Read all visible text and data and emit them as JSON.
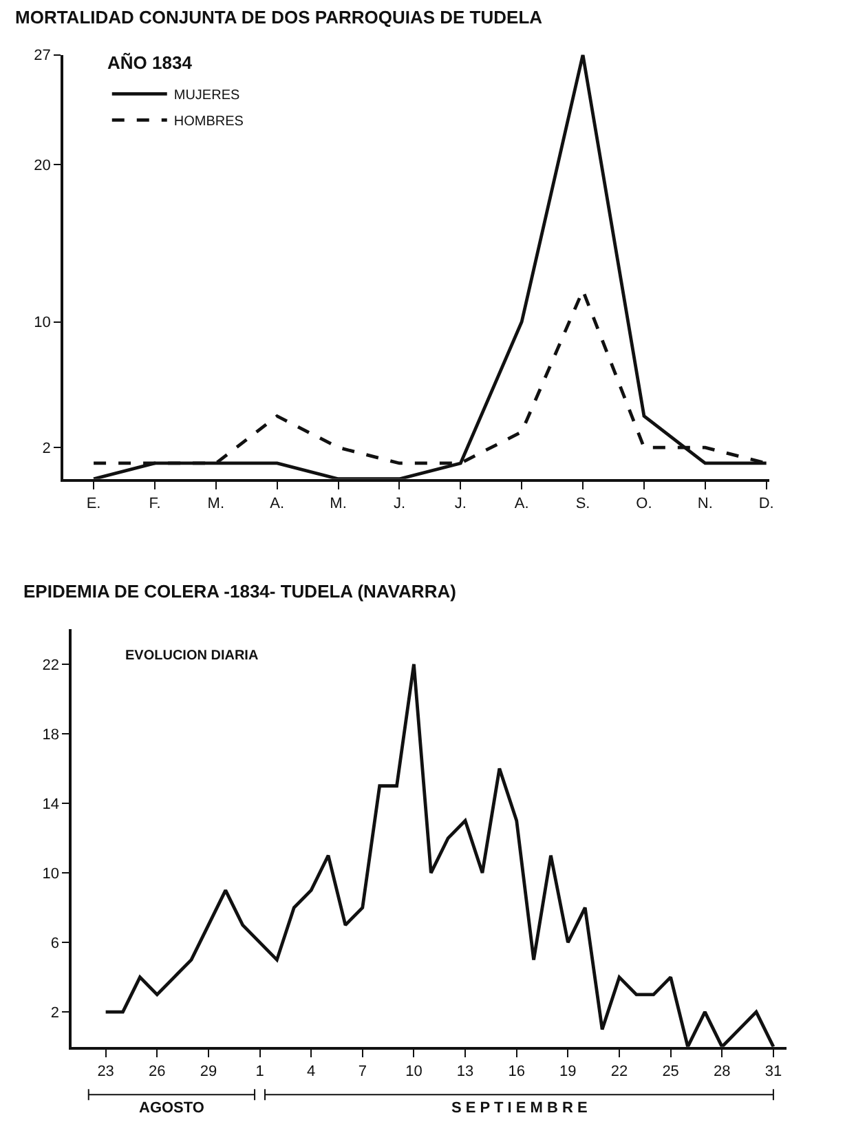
{
  "chart_data": [
    {
      "type": "line",
      "title": "MORTALIDAD CONJUNTA DE DOS PARROQUIAS DE TUDELA",
      "subtitle": "AÑO 1834",
      "categories": [
        "E.",
        "F.",
        "M.",
        "A.",
        "M.",
        "J.",
        "J.",
        "A.",
        "S.",
        "O.",
        "N.",
        "D."
      ],
      "series": [
        {
          "name": "MUJERES",
          "color": "#111111",
          "line_style": "solid",
          "values": [
            0,
            1,
            1,
            1,
            0,
            0,
            1,
            10,
            27,
            4,
            1,
            1
          ]
        },
        {
          "name": "HOMBRES",
          "color": "#111111",
          "line_style": "dashed",
          "values": [
            1,
            1,
            1,
            4,
            2,
            1,
            1,
            3,
            12,
            2,
            2,
            1
          ]
        }
      ],
      "ylim": [
        0,
        27
      ],
      "yticks": [
        2,
        10,
        20,
        27
      ],
      "grid": false,
      "legend": "top left",
      "marker": "none"
    },
    {
      "type": "line",
      "title": "EPIDEMIA DE COLERA -1834- TUDELA (NAVARRA)",
      "annotations": [
        "EVOLUCION DIARIA",
        "AGOSTO",
        "S E P T I E M B R E"
      ],
      "categories": [
        "23",
        null,
        null,
        "26",
        null,
        null,
        "29",
        null,
        null,
        "1",
        null,
        null,
        "4",
        null,
        null,
        "7",
        null,
        null,
        "10",
        null,
        null,
        "13",
        null,
        null,
        "16",
        null,
        null,
        "19",
        null,
        null,
        "22",
        null,
        null,
        "25",
        null,
        null,
        "28",
        null,
        null,
        "31"
      ],
      "series": [
        {
          "color": "#111111",
          "values": [
            2,
            2,
            4,
            3,
            4,
            5,
            7,
            9,
            7,
            6,
            5,
            8,
            9,
            11,
            7,
            8,
            15,
            15,
            22,
            10,
            12,
            13,
            10,
            16,
            13,
            5,
            11,
            6,
            8,
            1,
            4,
            3,
            3,
            4,
            0,
            2,
            0,
            1,
            2,
            0
          ]
        }
      ],
      "ylim": [
        0,
        24
      ],
      "yticks": [
        2,
        6,
        10,
        14,
        18,
        22
      ],
      "grid": false,
      "legend": false,
      "marker": "none"
    }
  ]
}
